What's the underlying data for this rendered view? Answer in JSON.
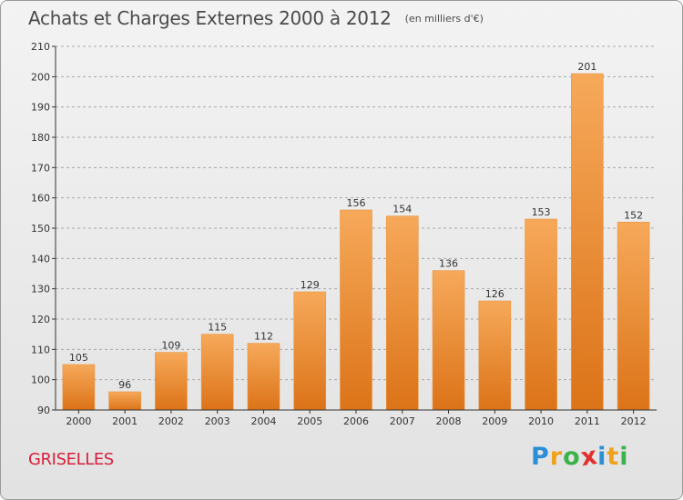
{
  "header": {
    "title": "Achats et Charges Externes 2000 à 2012",
    "unit_note": "(en milliers d'€)"
  },
  "commune": "GRISELLES",
  "logo": {
    "text": "Proxiti",
    "letters": [
      "P",
      "r",
      "o",
      "x",
      "i",
      "t",
      "i"
    ],
    "letter_colors": [
      "#2a8fd6",
      "#f0a21a",
      "#3bb34a",
      "#e2312d",
      "#2a8fd6",
      "#f0a21a",
      "#3bb34a"
    ]
  },
  "colors": {
    "bar_top": "#f6a95a",
    "bar_bottom": "#dc7318",
    "axis": "#333333",
    "grid": "#a8a8a8",
    "title": "#4a4a4a",
    "commune": "#d6203c"
  },
  "chart_data": {
    "type": "bar",
    "title": "Achats et Charges Externes 2000 à 2012",
    "subtitle": "(en milliers d'€)",
    "xlabel": "",
    "ylabel": "",
    "categories": [
      "2000",
      "2001",
      "2002",
      "2003",
      "2004",
      "2005",
      "2006",
      "2007",
      "2008",
      "2009",
      "2010",
      "2011",
      "2012"
    ],
    "values": [
      105,
      96,
      109,
      115,
      112,
      129,
      156,
      154,
      136,
      126,
      153,
      201,
      152
    ],
    "ylim": [
      90,
      210
    ],
    "yticks": [
      90,
      100,
      110,
      120,
      130,
      140,
      150,
      160,
      170,
      180,
      190,
      200,
      210
    ],
    "grid": "horizontal dashed",
    "legend": "none"
  }
}
